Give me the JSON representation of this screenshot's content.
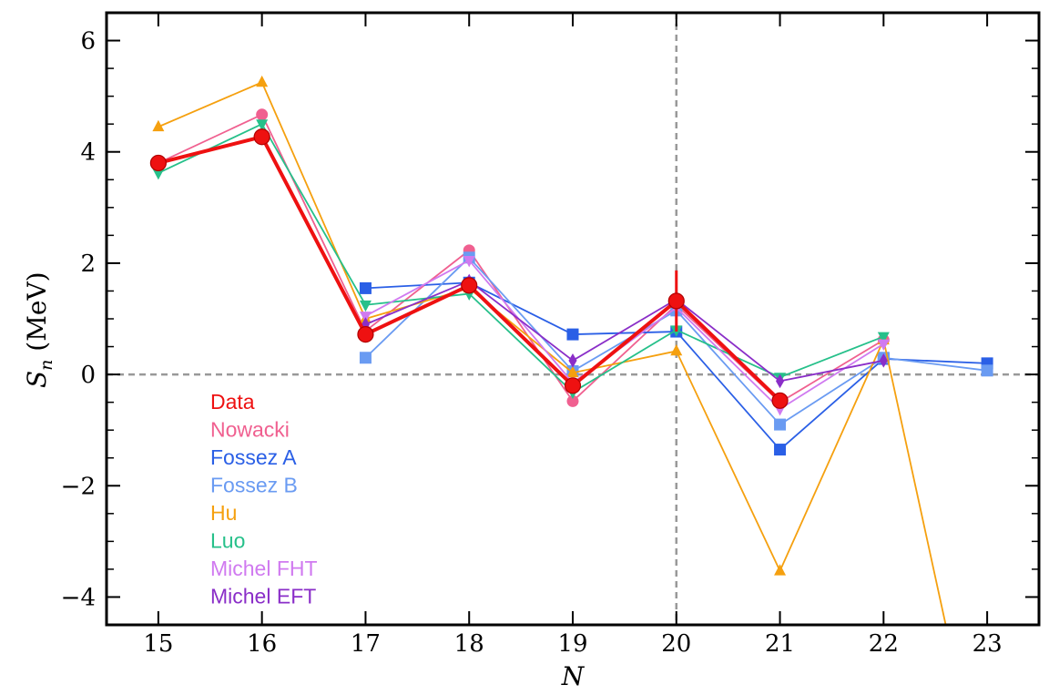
{
  "chart_data": {
    "type": "line",
    "title": "",
    "xlabel": "N",
    "ylabel_symbol": "S",
    "ylabel_subscript": "n",
    "ylabel_unit": " (MeV)",
    "xlim": [
      14.5,
      23.5
    ],
    "ylim": [
      -4.5,
      6.5
    ],
    "xticks": [
      15,
      16,
      17,
      18,
      19,
      20,
      21,
      22,
      23
    ],
    "yticks": [
      -4,
      -2,
      0,
      2,
      4,
      6
    ],
    "ytick_labels": [
      "−4",
      "−2",
      "0",
      "2",
      "4",
      "6"
    ],
    "reference_lines": {
      "horizontal_y": 0,
      "vertical_x": 20
    },
    "legend_position": "lower-left",
    "series": [
      {
        "name": "Data",
        "color": "#ee1111",
        "marker": "circle",
        "main": true,
        "x": [
          15,
          16,
          17,
          18,
          19,
          20,
          21
        ],
        "y": [
          3.8,
          4.27,
          0.72,
          1.6,
          -0.2,
          1.32,
          -0.47
        ],
        "err": [
          0.05,
          0.06,
          0.06,
          0.05,
          0.08,
          0.55,
          0.07
        ]
      },
      {
        "name": "Nowacki",
        "color": "#f06090",
        "marker": "circle",
        "x": [
          15,
          16,
          17,
          18,
          19,
          20,
          21,
          22
        ],
        "y": [
          3.8,
          4.67,
          0.78,
          2.23,
          -0.48,
          1.25,
          -0.5,
          0.62
        ]
      },
      {
        "name": "Fossez A",
        "color": "#2a5fe6",
        "marker": "square",
        "x": [
          17,
          18,
          19,
          20,
          21,
          22,
          23
        ],
        "y": [
          1.55,
          1.65,
          0.72,
          0.77,
          -1.35,
          0.28,
          0.2
        ]
      },
      {
        "name": "Fossez B",
        "color": "#6a9bf2",
        "marker": "square",
        "x": [
          17,
          18,
          19,
          20,
          21,
          22,
          23
        ],
        "y": [
          0.3,
          2.1,
          0.06,
          1.15,
          -0.9,
          0.3,
          0.07
        ]
      },
      {
        "name": "Hu",
        "color": "#f5a00f",
        "marker": "triangle-up",
        "x": [
          15,
          16,
          17,
          18,
          19,
          20,
          21,
          22,
          22.6
        ],
        "y": [
          4.45,
          5.25,
          1.0,
          1.55,
          0.03,
          0.42,
          -3.53,
          0.62,
          -4.5
        ]
      },
      {
        "name": "Luo",
        "color": "#26c08a",
        "marker": "triangle-down",
        "x": [
          15,
          16,
          17,
          18,
          19,
          20,
          21,
          22
        ],
        "y": [
          3.62,
          4.5,
          1.25,
          1.45,
          -0.32,
          0.8,
          -0.05,
          0.68
        ]
      },
      {
        "name": "Michel FHT",
        "color": "#d07af0",
        "marker": "triangle-down",
        "x": [
          17,
          18,
          19,
          20,
          21,
          22
        ],
        "y": [
          1.05,
          2.05,
          -0.15,
          1.2,
          -0.62,
          0.55
        ]
      },
      {
        "name": "Michel EFT",
        "color": "#8a2ec8",
        "marker": "diamond",
        "x": [
          17,
          18,
          19,
          20,
          21,
          22
        ],
        "y": [
          0.9,
          1.68,
          0.25,
          1.35,
          -0.12,
          0.25
        ]
      }
    ]
  }
}
